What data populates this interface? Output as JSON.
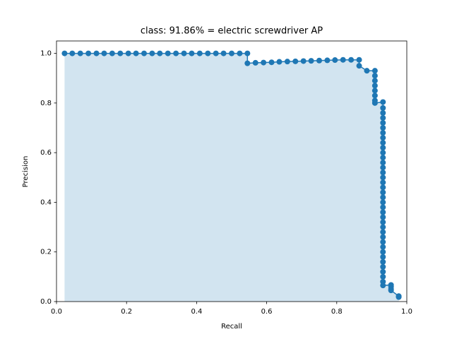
{
  "chart_data": {
    "type": "line",
    "title": "class: 91.86% = electric screwdriver AP",
    "xlabel": "Recall",
    "ylabel": "Precision",
    "color": "#1f77b4",
    "fill": true,
    "xlim": [
      0,
      1
    ],
    "ylim": [
      0,
      1.05
    ],
    "xticks": [
      {
        "value": 0,
        "label": "0.0"
      },
      {
        "value": 0.2,
        "label": "0.2"
      },
      {
        "value": 0.4,
        "label": "0.4"
      },
      {
        "value": 0.6,
        "label": "0.6"
      },
      {
        "value": 0.8,
        "label": "0.8"
      },
      {
        "value": 1,
        "label": "1.0"
      }
    ],
    "yticks": [
      {
        "value": 0,
        "label": "0.0"
      },
      {
        "value": 0.2,
        "label": "0.2"
      },
      {
        "value": 0.4,
        "label": "0.4"
      },
      {
        "value": 0.6,
        "label": "0.6"
      },
      {
        "value": 0.8,
        "label": "0.8"
      },
      {
        "value": 1,
        "label": "1.0"
      }
    ],
    "x": [
      0.023,
      0.045,
      0.068,
      0.091,
      0.114,
      0.136,
      0.159,
      0.182,
      0.205,
      0.227,
      0.25,
      0.273,
      0.295,
      0.318,
      0.341,
      0.364,
      0.386,
      0.409,
      0.432,
      0.455,
      0.477,
      0.5,
      0.523,
      0.545,
      0.545,
      0.568,
      0.591,
      0.614,
      0.636,
      0.659,
      0.682,
      0.705,
      0.727,
      0.75,
      0.773,
      0.795,
      0.818,
      0.841,
      0.864,
      0.864,
      0.886,
      0.909,
      0.909,
      0.909,
      0.909,
      0.909,
      0.909,
      0.909,
      0.909,
      0.932,
      0.932,
      0.932,
      0.932,
      0.932,
      0.932,
      0.932,
      0.932,
      0.932,
      0.932,
      0.932,
      0.932,
      0.932,
      0.932,
      0.932,
      0.932,
      0.932,
      0.932,
      0.932,
      0.932,
      0.932,
      0.932,
      0.932,
      0.932,
      0.932,
      0.932,
      0.932,
      0.932,
      0.932,
      0.932,
      0.932,
      0.932,
      0.932,
      0.932,
      0.932,
      0.932,
      0.932,
      0.932,
      0.955,
      0.955,
      0.955,
      0.955,
      0.977,
      0.977,
      0.977
    ],
    "values": [
      1,
      1,
      1,
      1,
      1,
      1,
      1,
      1,
      1,
      1,
      1,
      1,
      1,
      1,
      1,
      1,
      1,
      1,
      1,
      1,
      1,
      1,
      1,
      1,
      0.96,
      0.962,
      0.963,
      0.964,
      0.966,
      0.967,
      0.968,
      0.969,
      0.97,
      0.971,
      0.972,
      0.973,
      0.974,
      0.974,
      0.974,
      0.95,
      0.93,
      0.93,
      0.91,
      0.89,
      0.87,
      0.85,
      0.83,
      0.81,
      0.8,
      0.804,
      0.78,
      0.76,
      0.74,
      0.72,
      0.7,
      0.68,
      0.66,
      0.64,
      0.62,
      0.6,
      0.58,
      0.56,
      0.54,
      0.52,
      0.5,
      0.48,
      0.46,
      0.44,
      0.42,
      0.4,
      0.38,
      0.36,
      0.34,
      0.32,
      0.3,
      0.28,
      0.26,
      0.24,
      0.22,
      0.2,
      0.18,
      0.16,
      0.14,
      0.12,
      0.1,
      0.08,
      0.065,
      0.067,
      0.06,
      0.05,
      0.045,
      0.022,
      0.02,
      0.018
    ]
  }
}
